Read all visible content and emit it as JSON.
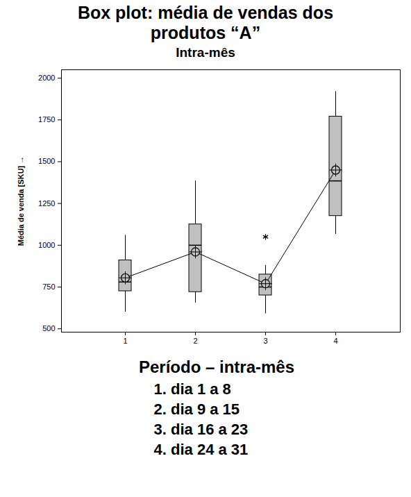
{
  "chart_data": {
    "type": "box",
    "title": "Box plot: média de vendas dos produtos “A”",
    "subtitle": "Intra-mês",
    "y_label": "Média de venda [SKU]",
    "x_label": "Período – intra-mês",
    "categories": [
      "1",
      "2",
      "3",
      "4"
    ],
    "category_descriptions": [
      "dia 1 a 8",
      "dia 9 a 15",
      "dia 16 a 23",
      "dia 24 a 31"
    ],
    "boxes": [
      {
        "whisker_low": 600,
        "q1": 725,
        "median": 780,
        "q3": 910,
        "whisker_high": 1060,
        "mean": 805,
        "outliers": []
      },
      {
        "whisker_low": 655,
        "q1": 720,
        "median": 1000,
        "q3": 1125,
        "whisker_high": 1385,
        "mean": 960,
        "outliers": []
      },
      {
        "whisker_low": 590,
        "q1": 700,
        "median": 750,
        "q3": 825,
        "whisker_high": 880,
        "mean": 770,
        "outliers": [
          1050
        ]
      },
      {
        "whisker_low": 1065,
        "q1": 1175,
        "median": 1385,
        "q3": 1770,
        "whisker_high": 1920,
        "mean": 1450,
        "outliers": []
      }
    ],
    "color": "#c0c0c0",
    "ylim": [
      480,
      2050
    ],
    "yticks": [
      500,
      750,
      1000,
      1250,
      1500,
      1750,
      2000
    ],
    "grid": false
  }
}
